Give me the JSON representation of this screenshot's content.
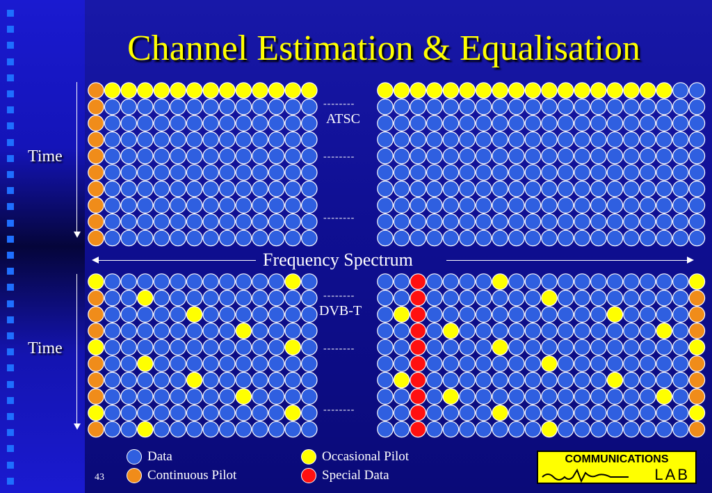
{
  "title": "Channel Estimation & Equalisation",
  "labels": {
    "time_top": "Time",
    "time_bottom": "Time",
    "frequency": "Frequency Spectrum",
    "atsc": "ATSC",
    "dvbt": "DVB-T",
    "dashes": "--------"
  },
  "page_number": "43",
  "legend": [
    {
      "label": "Data",
      "color": "#2f5fe0"
    },
    {
      "label": "Continuous Pilot",
      "color": "#f08c1a"
    },
    {
      "label": "Occasional Pilot",
      "color": "#ffff00"
    },
    {
      "label": "Special Data",
      "color": "#ff1010"
    }
  ],
  "logo": {
    "line1": "COMMUNICATIONS",
    "line2": "LAB"
  },
  "colors": {
    "data": "#2f5fe0",
    "continuous_pilot": "#f08c1a",
    "occasional_pilot": "#ffff00",
    "special_data": "#ff1010"
  },
  "grids": {
    "atsc_left": {
      "rows": [
        "CPPPPPPPPPPPPP",
        "CDDDDDDDDDDDDD",
        "CDDDDDDDDDDDDD",
        "CDDDDDDDDDDDDD",
        "CDDDDDDDDDDDDD",
        "CDDDDDDDDDDDDD",
        "CDDDDDDDDDDDDD",
        "CDDDDDDDDDDDDD",
        "CDDDDDDDDDDDDD",
        "CDDDDDDDDDDDDD"
      ]
    },
    "atsc_right": {
      "rows": [
        "PPPPPPPPPPPPPPPPPPDD",
        "DDDDDDDDDDDDDDDDDDDD",
        "DDDDDDDDDDDDDDDDDDDD",
        "DDDDDDDDDDDDDDDDDDDD",
        "DDDDDDDDDDDDDDDDDDDD",
        "DDDDDDDDDDDDDDDDDDDD",
        "DDDDDDDDDDDDDDDDDDDD",
        "DDDDDDDDDDDDDDDDDDDD",
        "DDDDDDDDDDDDDDDDDDDD",
        "DDDDDDDDDDDDDDDDDDDD"
      ]
    },
    "dvbt_left": {
      "rows": [
        "PDDDDDDDDDDDPD",
        "CDDPDDDDDDDDDD",
        "CDDDDDPDDDDDDD",
        "CDDDDDDDDPDDDD",
        "PDDDDDDDDDDDPD",
        "CDDPDDDDDDDDDD",
        "CDDDDDPDDDDDDD",
        "CDDDDDDDDPDDDD",
        "PDDDDDDDDDDDPD",
        "CDDPDDDDDDDDDD"
      ]
    },
    "dvbt_right": {
      "rows": [
        "DDSDDDDPDDDDDDDDDDDP",
        "DDSDDDDDDDPDDDDDDDDC",
        "DPSDDDDDDDDDDDPDDDDC",
        "DDSDPDDDDDDDDDDDDPDC",
        "DDSDDDDPDDDDDDDDDDDP",
        "DDSDDDDDDDPDDDDDDDDC",
        "DPSDDDDDDDDDDDPDDDDC",
        "DDSDPDDDDDDDDDDDDPDC",
        "DDSDDDDPDDDDDDDDDDDP",
        "DDSDDDDDDDPDDDDDDDDC"
      ]
    }
  }
}
